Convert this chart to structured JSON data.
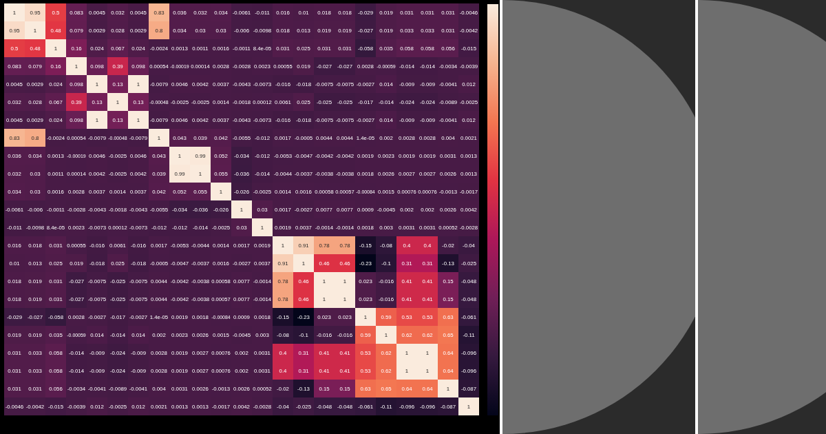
{
  "chart_data": {
    "type": "heatmap",
    "categories": [
      null,
      null,
      null,
      null,
      null,
      null,
      null,
      null,
      null,
      null,
      null,
      null,
      null,
      null,
      null,
      null,
      null,
      null,
      null,
      null,
      null,
      null,
      null
    ],
    "y_categories": [
      null,
      null,
      null,
      null,
      null,
      null,
      null,
      null,
      null,
      null,
      null,
      null,
      null,
      null,
      null,
      null,
      null,
      null,
      null,
      null,
      null,
      null,
      null
    ],
    "data_labels": true,
    "cells": [
      [
        1,
        0.95,
        0.5,
        0.083,
        0.0045,
        0.032,
        0.0045,
        0.83,
        0.036,
        0.032,
        0.034,
        -0.0061,
        -0.011,
        0.016,
        0.01,
        0.018,
        0.018,
        -0.029,
        0.019,
        0.031,
        0.031,
        0.031,
        -0.0046
      ],
      [
        0.95,
        1,
        0.48,
        0.079,
        0.0029,
        0.028,
        0.0029,
        0.8,
        0.034,
        0.03,
        0.03,
        -0.006,
        -0.0098,
        0.018,
        0.013,
        0.019,
        0.019,
        -0.027,
        0.019,
        0.033,
        0.033,
        0.031,
        -0.0042
      ],
      [
        0.5,
        0.48,
        1,
        0.16,
        0.024,
        0.067,
        0.024,
        -0.0024,
        0.0013,
        0.0011,
        0.0016,
        -0.0011,
        8.4e-05,
        0.031,
        0.025,
        0.031,
        0.031,
        -0.058,
        0.035,
        0.058,
        0.058,
        0.056,
        -0.015
      ],
      [
        0.083,
        0.079,
        0.16,
        1,
        0.098,
        0.39,
        0.098,
        0.00054,
        -0.00019,
        0.00014,
        0.0028,
        -0.0028,
        0.0023,
        0.00055,
        0.019,
        -0.027,
        -0.027,
        0.0028,
        -0.00059,
        -0.014,
        -0.014,
        -0.0034,
        -0.0039
      ],
      [
        0.0045,
        0.0029,
        0.024,
        0.098,
        1,
        0.13,
        1,
        -0.0079,
        0.0046,
        0.0042,
        0.0037,
        -0.0043,
        -0.0073,
        -0.016,
        -0.018,
        -0.0075,
        -0.0075,
        -0.0027,
        0.014,
        -0.009,
        -0.009,
        -0.0041,
        0.012
      ],
      [
        0.032,
        0.028,
        0.067,
        0.39,
        0.13,
        1,
        0.13,
        -0.00048,
        -0.0025,
        -0.0025,
        0.0014,
        -0.0018,
        0.00012,
        0.0061,
        0.025,
        -0.025,
        -0.025,
        -0.017,
        -0.014,
        -0.024,
        -0.024,
        -0.0089,
        -0.0025
      ],
      [
        0.0045,
        0.0029,
        0.024,
        0.098,
        1,
        0.13,
        1,
        -0.0079,
        0.0046,
        0.0042,
        0.0037,
        -0.0043,
        -0.0073,
        -0.016,
        -0.018,
        -0.0075,
        -0.0075,
        -0.0027,
        0.014,
        -0.009,
        -0.009,
        -0.0041,
        0.012
      ],
      [
        0.83,
        0.8,
        -0.0024,
        0.00054,
        -0.0079,
        -0.00048,
        -0.0079,
        1,
        0.043,
        0.039,
        0.042,
        -0.0055,
        -0.012,
        0.0017,
        -0.0005,
        0.0044,
        0.0044,
        1.4e-05,
        0.002,
        0.0028,
        0.0028,
        0.004,
        0.0021
      ],
      [
        0.036,
        0.034,
        0.0013,
        -0.00019,
        0.0046,
        -0.0025,
        0.0046,
        0.043,
        1,
        0.99,
        0.052,
        -0.034,
        -0.012,
        -0.0053,
        -0.0047,
        -0.0042,
        -0.0042,
        0.0019,
        0.0023,
        0.0019,
        0.0019,
        0.0031,
        0.0013
      ],
      [
        0.032,
        0.03,
        0.0011,
        0.00014,
        0.0042,
        -0.0025,
        0.0042,
        0.039,
        0.99,
        1,
        0.055,
        -0.036,
        -0.014,
        -0.0044,
        -0.0037,
        -0.0038,
        -0.0038,
        0.0018,
        0.0026,
        0.0027,
        0.0027,
        0.0026,
        0.0013
      ],
      [
        0.034,
        0.03,
        0.0016,
        0.0028,
        0.0037,
        0.0014,
        0.0037,
        0.042,
        0.052,
        0.055,
        1,
        -0.026,
        -0.0025,
        0.0014,
        0.0016,
        0.00058,
        0.00057,
        -0.00084,
        0.0015,
        0.00076,
        0.00076,
        -0.0013,
        -0.0017
      ],
      [
        -0.0061,
        -0.006,
        -0.0011,
        -0.0028,
        -0.0043,
        -0.0018,
        -0.0043,
        -0.0055,
        -0.034,
        -0.036,
        -0.026,
        1,
        0.03,
        0.0017,
        -0.0027,
        0.0077,
        0.0077,
        0.0009,
        -0.0045,
        0.002,
        0.002,
        0.0026,
        0.0042
      ],
      [
        -0.011,
        -0.0098,
        8.4e-05,
        0.0023,
        -0.0073,
        0.00012,
        -0.0073,
        -0.012,
        -0.012,
        -0.014,
        -0.0025,
        0.03,
        1,
        0.0019,
        0.0037,
        -0.0014,
        -0.0014,
        0.0018,
        0.003,
        0.0031,
        0.0031,
        0.00052,
        -0.0028
      ],
      [
        0.016,
        0.018,
        0.031,
        0.00055,
        -0.016,
        0.0061,
        -0.016,
        0.0017,
        -0.0053,
        -0.0044,
        0.0014,
        0.0017,
        0.0019,
        1,
        0.91,
        0.78,
        0.78,
        -0.15,
        -0.08,
        0.4,
        0.4,
        -0.02,
        -0.04
      ],
      [
        0.01,
        0.013,
        0.025,
        0.019,
        -0.018,
        0.025,
        -0.018,
        -0.0005,
        -0.0047,
        -0.0037,
        0.0016,
        -0.0027,
        0.0037,
        0.91,
        1,
        0.46,
        0.46,
        -0.23,
        -0.1,
        0.31,
        0.31,
        -0.13,
        -0.025
      ],
      [
        0.018,
        0.019,
        0.031,
        -0.027,
        -0.0075,
        -0.025,
        -0.0075,
        0.0044,
        -0.0042,
        -0.0038,
        0.00058,
        0.0077,
        -0.0014,
        0.78,
        0.46,
        1,
        1,
        0.023,
        -0.016,
        0.41,
        0.41,
        0.15,
        -0.048
      ],
      [
        0.018,
        0.019,
        0.031,
        -0.027,
        -0.0075,
        -0.025,
        -0.0075,
        0.0044,
        -0.0042,
        -0.0038,
        0.00057,
        0.0077,
        -0.0014,
        0.78,
        0.46,
        1,
        1,
        0.023,
        -0.016,
        0.41,
        0.41,
        0.15,
        -0.048
      ],
      [
        -0.029,
        -0.027,
        -0.058,
        0.0028,
        -0.0027,
        -0.017,
        -0.0027,
        1.4e-05,
        0.0019,
        0.0018,
        -0.00084,
        0.0009,
        0.0018,
        -0.15,
        -0.23,
        0.023,
        0.023,
        1,
        0.59,
        0.53,
        0.53,
        0.63,
        -0.061
      ],
      [
        0.019,
        0.019,
        0.035,
        -0.00059,
        0.014,
        -0.014,
        0.014,
        0.002,
        0.0023,
        0.0026,
        0.0015,
        -0.0045,
        0.003,
        -0.08,
        -0.1,
        -0.016,
        -0.016,
        0.59,
        1,
        0.62,
        0.62,
        0.65,
        -0.11
      ],
      [
        0.031,
        0.033,
        0.058,
        -0.014,
        -0.009,
        -0.024,
        -0.009,
        0.0028,
        0.0019,
        0.0027,
        0.00076,
        0.002,
        0.0031,
        0.4,
        0.31,
        0.41,
        0.41,
        0.53,
        0.62,
        1,
        1,
        0.64,
        -0.096
      ],
      [
        0.031,
        0.033,
        0.058,
        -0.014,
        -0.009,
        -0.024,
        -0.009,
        0.0028,
        0.0019,
        0.0027,
        0.00076,
        0.002,
        0.0031,
        0.4,
        0.31,
        0.41,
        0.41,
        0.53,
        0.62,
        1,
        1,
        0.64,
        -0.096
      ],
      [
        0.031,
        0.031,
        0.056,
        -0.0034,
        -0.0041,
        -0.0089,
        -0.0041,
        0.004,
        0.0031,
        0.0026,
        -0.0013,
        0.0026,
        0.00052,
        -0.02,
        -0.13,
        0.15,
        0.15,
        0.63,
        0.65,
        0.64,
        0.64,
        1,
        -0.087
      ],
      [
        -0.0046,
        -0.0042,
        -0.015,
        -0.0039,
        0.012,
        -0.0025,
        0.012,
        0.0021,
        0.0013,
        0.0013,
        -0.0017,
        0.0042,
        -0.0028,
        -0.04,
        -0.025,
        -0.048,
        -0.048,
        -0.061,
        -0.11,
        -0.096,
        -0.096,
        -0.087,
        1
      ]
    ]
  }
}
